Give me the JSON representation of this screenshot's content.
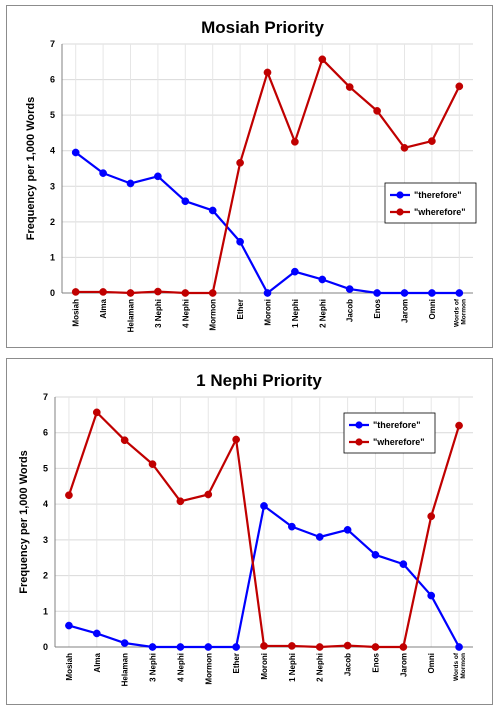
{
  "chart_data": [
    {
      "type": "line",
      "title": "Mosiah Priority",
      "xlabel": "",
      "ylabel": "Frequency per 1,000 Words",
      "ylim": [
        0,
        7
      ],
      "yticks": [
        0,
        1,
        2,
        3,
        4,
        5,
        6,
        7
      ],
      "grid": true,
      "legend_position": "right",
      "categories": [
        "Mosiah",
        "Alma",
        "Helaman",
        "3 Nephi",
        "4 Nephi",
        "Mormon",
        "Ether",
        "Moroni",
        "1 Nephi",
        "2 Nephi",
        "Jacob",
        "Enos",
        "Jarom",
        "Omni",
        "Words of Mormon"
      ],
      "series": [
        {
          "name": "\"therefore\"",
          "color": "#0000ff",
          "values": [
            3.95,
            3.37,
            3.08,
            3.28,
            2.58,
            2.32,
            1.44,
            0.0,
            0.6,
            0.38,
            0.11,
            0.0,
            0.0,
            0.0,
            0.0
          ]
        },
        {
          "name": "\"wherefore\"",
          "color": "#c00000",
          "values": [
            0.03,
            0.03,
            0.0,
            0.04,
            0.0,
            0.0,
            3.66,
            6.2,
            4.25,
            6.57,
            5.79,
            5.12,
            4.08,
            4.27,
            5.81
          ]
        }
      ]
    },
    {
      "type": "line",
      "title": "1 Nephi Priority",
      "xlabel": "",
      "ylabel": "Frequency per 1,000 Words",
      "ylim": [
        0,
        7
      ],
      "yticks": [
        0,
        1,
        2,
        3,
        4,
        5,
        6,
        7
      ],
      "grid": true,
      "legend_position": "top-right",
      "categories": [
        "Mosiah",
        "Alma",
        "Helaman",
        "3 Nephi",
        "4 Nephi",
        "Mormon",
        "Ether",
        "Moroni",
        "1 Nephi",
        "2 Nephi",
        "Jacob",
        "Enos",
        "Jarom",
        "Omni",
        "Words of Mormon"
      ],
      "series": [
        {
          "name": "\"therefore\"",
          "color": "#0000ff",
          "values": [
            0.6,
            0.38,
            0.11,
            0.0,
            0.0,
            0.0,
            0.0,
            3.95,
            3.37,
            3.08,
            3.28,
            2.58,
            2.32,
            1.44,
            0.0
          ]
        },
        {
          "name": "\"wherefore\"",
          "color": "#c00000",
          "values": [
            4.25,
            6.57,
            5.79,
            5.12,
            4.08,
            4.27,
            5.81,
            0.03,
            0.03,
            0.0,
            0.04,
            0.0,
            0.0,
            3.66,
            6.2
          ]
        }
      ]
    }
  ]
}
